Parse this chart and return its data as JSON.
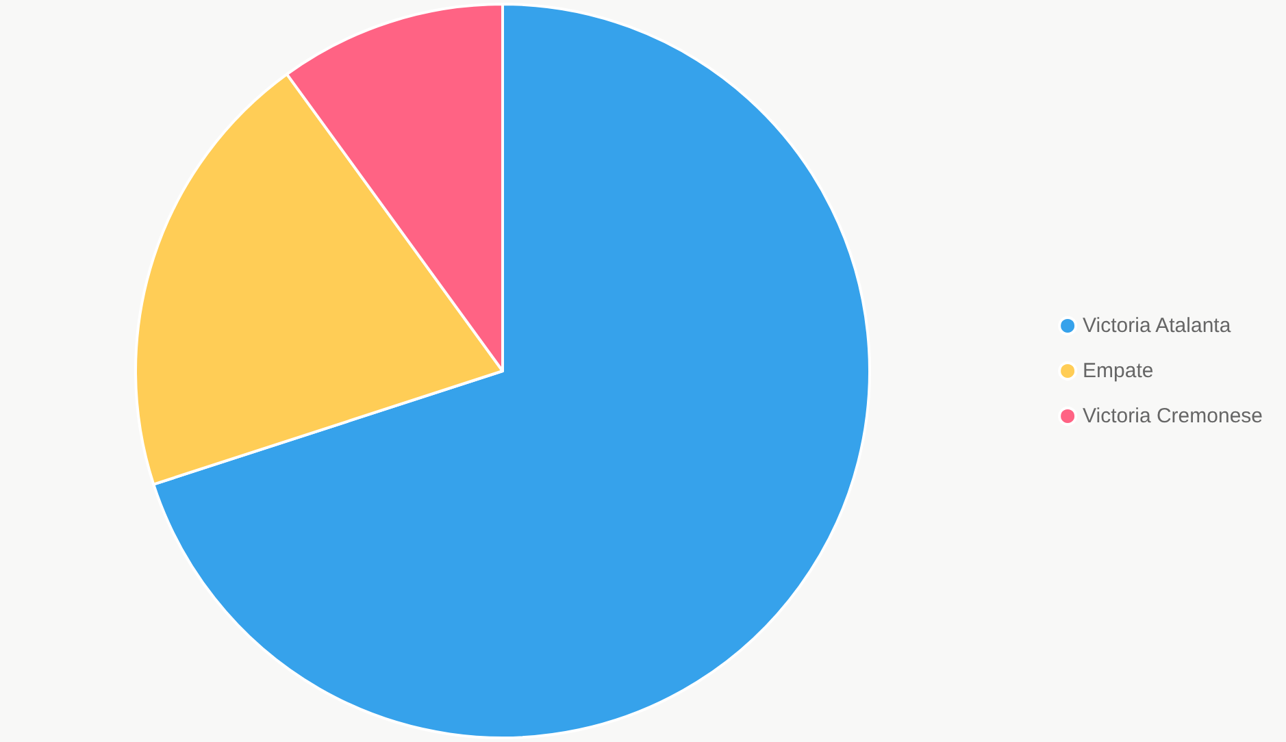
{
  "chart_data": {
    "type": "pie",
    "categories": [
      "Victoria Atalanta",
      "Empate",
      "Victoria Cremonese"
    ],
    "values": [
      70,
      20,
      10
    ],
    "colors": [
      "#36a2eb",
      "#ffcd56",
      "#ff6384"
    ],
    "legend": "right"
  }
}
